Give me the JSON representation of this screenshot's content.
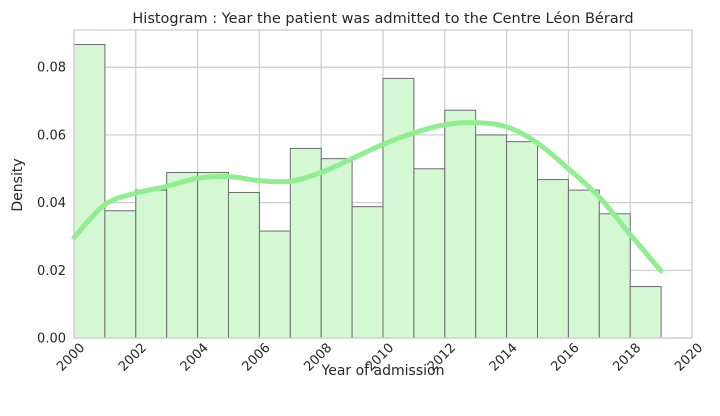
{
  "chart_data": {
    "type": "bar",
    "title": "Histogram : Year the patient was admitted to the Centre Léon Bérard",
    "xlabel": "Year of admission",
    "ylabel": "Density",
    "xlim": [
      2000,
      2020
    ],
    "ylim": [
      0,
      0.091
    ],
    "grid": true,
    "x_ticks": [
      2000,
      2002,
      2004,
      2006,
      2008,
      2010,
      2012,
      2014,
      2016,
      2018,
      2020
    ],
    "x_tick_labels": [
      "2000",
      "2002",
      "2004",
      "2006",
      "2008",
      "2010",
      "2012",
      "2014",
      "2016",
      "2018",
      "2020"
    ],
    "y_ticks": [
      0,
      0.02,
      0.04,
      0.06,
      0.08
    ],
    "y_tick_labels": [
      "0.00",
      "0.02",
      "0.04",
      "0.06",
      "0.08"
    ],
    "bins": [
      {
        "start": 2000,
        "end": 2001,
        "value": 0.0867
      },
      {
        "start": 2001,
        "end": 2002,
        "value": 0.0376
      },
      {
        "start": 2002,
        "end": 2003,
        "value": 0.0437
      },
      {
        "start": 2003,
        "end": 2004,
        "value": 0.0489
      },
      {
        "start": 2004,
        "end": 2005,
        "value": 0.0489
      },
      {
        "start": 2005,
        "end": 2006,
        "value": 0.043
      },
      {
        "start": 2006,
        "end": 2007,
        "value": 0.0316
      },
      {
        "start": 2007,
        "end": 2008,
        "value": 0.056
      },
      {
        "start": 2008,
        "end": 2009,
        "value": 0.053
      },
      {
        "start": 2009,
        "end": 2010,
        "value": 0.0388
      },
      {
        "start": 2010,
        "end": 2011,
        "value": 0.0767
      },
      {
        "start": 2011,
        "end": 2012,
        "value": 0.05
      },
      {
        "start": 2012,
        "end": 2013,
        "value": 0.0673
      },
      {
        "start": 2013,
        "end": 2014,
        "value": 0.06
      },
      {
        "start": 2014,
        "end": 2015,
        "value": 0.058
      },
      {
        "start": 2015,
        "end": 2016,
        "value": 0.0468
      },
      {
        "start": 2016,
        "end": 2017,
        "value": 0.0437
      },
      {
        "start": 2017,
        "end": 2018,
        "value": 0.0367
      },
      {
        "start": 2018,
        "end": 2019,
        "value": 0.0152
      }
    ],
    "kde": {
      "x": [
        2000,
        2001,
        2002,
        2003,
        2004,
        2005,
        2006,
        2007,
        2008,
        2009,
        2010,
        2011,
        2012,
        2013,
        2014,
        2015,
        2016,
        2017,
        2018,
        2019
      ],
      "y": [
        0.0297,
        0.0394,
        0.0428,
        0.0448,
        0.0472,
        0.0477,
        0.0465,
        0.0463,
        0.0489,
        0.053,
        0.0572,
        0.0606,
        0.063,
        0.0636,
        0.0624,
        0.0576,
        0.05,
        0.0416,
        0.0306,
        0.0198
      ]
    },
    "colors": {
      "bar_fill": "#d3f8d3",
      "bar_edge": "#6b6b6b",
      "kde_line": "#90ee90",
      "grid": "#cccccc",
      "spine": "#cccccc",
      "text": "#262626"
    }
  }
}
